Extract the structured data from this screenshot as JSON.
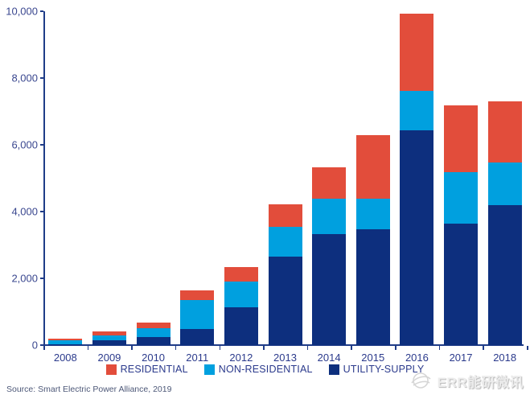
{
  "chart_data": {
    "type": "bar",
    "subtype": "stacked-vertical",
    "categories": [
      "2008",
      "2009",
      "2010",
      "2011",
      "2012",
      "2013",
      "2014",
      "2015",
      "2016",
      "2017",
      "2018"
    ],
    "series": [
      {
        "name": "RESIDENTIAL",
        "color": "#e24d3b",
        "values": [
          60,
          120,
          160,
          310,
          425,
          675,
          950,
          1910,
          2310,
          2000,
          1840
        ]
      },
      {
        "name": "NON-RESIDENTIAL",
        "color": "#00a0df",
        "values": [
          115,
          150,
          255,
          860,
          785,
          895,
          1050,
          920,
          1180,
          1540,
          1280
        ]
      },
      {
        "name": "UTILITY-SUPPLY",
        "color": "#0d2f7e",
        "values": [
          25,
          150,
          250,
          480,
          1130,
          2640,
          3330,
          3470,
          6440,
          3630,
          4190
        ]
      }
    ],
    "stack_order_bottom_to_top": [
      "UTILITY-SUPPLY",
      "NON-RESIDENTIAL",
      "RESIDENTIAL"
    ],
    "title": "",
    "xlabel": "",
    "ylabel": "",
    "ylim": [
      0,
      10000
    ],
    "ytick_values": [
      0,
      2000,
      4000,
      6000,
      8000,
      10000
    ],
    "ytick_labels": [
      "0",
      "2,000",
      "4,000",
      "6,000",
      "8,000",
      "10,000"
    ],
    "grid": false,
    "legend_position": "bottom"
  },
  "colors": {
    "residential": "#e24d3b",
    "non_residential": "#00a0df",
    "utility_supply": "#0d2f7e",
    "axis": "#1f3c88",
    "tick_text": "#3a478f"
  },
  "source_note": "Source: Smart Electric Power Alliance, 2019",
  "watermark": {
    "text": "ERR能研微讯",
    "logo": "err-globe-logo"
  }
}
